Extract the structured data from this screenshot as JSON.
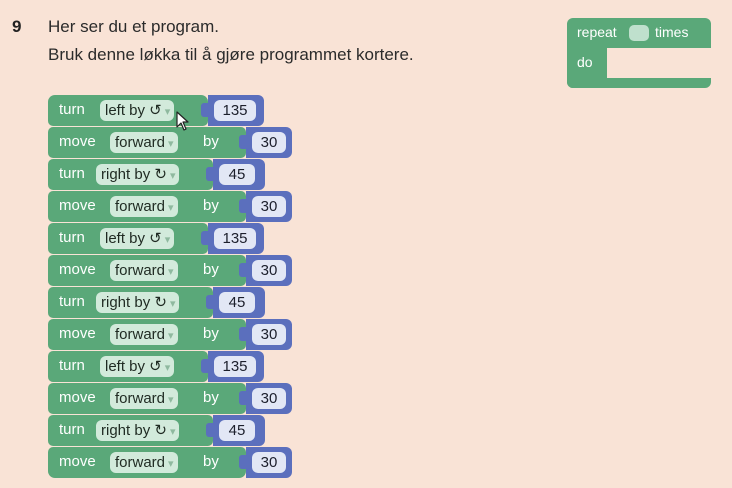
{
  "question": {
    "number": "9",
    "line1": "Her ser du et program.",
    "line2": "Bruk denne løkka til å gjøre programmet kortere."
  },
  "repeat_block": {
    "word": "repeat",
    "times": "times",
    "do": "do"
  },
  "program": [
    {
      "keyword": "turn",
      "dropdown": "left by ↺",
      "by": "",
      "value": "135"
    },
    {
      "keyword": "move",
      "dropdown": "forward",
      "by": "by",
      "value": "30"
    },
    {
      "keyword": "turn",
      "dropdown": "right by ↻",
      "by": "",
      "value": "45"
    },
    {
      "keyword": "move",
      "dropdown": "forward",
      "by": "by",
      "value": "30"
    },
    {
      "keyword": "turn",
      "dropdown": "left by ↺",
      "by": "",
      "value": "135"
    },
    {
      "keyword": "move",
      "dropdown": "forward",
      "by": "by",
      "value": "30"
    },
    {
      "keyword": "turn",
      "dropdown": "right by ↻",
      "by": "",
      "value": "45"
    },
    {
      "keyword": "move",
      "dropdown": "forward",
      "by": "by",
      "value": "30"
    },
    {
      "keyword": "turn",
      "dropdown": "left by ↺",
      "by": "",
      "value": "135"
    },
    {
      "keyword": "move",
      "dropdown": "forward",
      "by": "by",
      "value": "30"
    },
    {
      "keyword": "turn",
      "dropdown": "right by ↻",
      "by": "",
      "value": "45"
    },
    {
      "keyword": "move",
      "dropdown": "forward",
      "by": "by",
      "value": "30"
    }
  ],
  "colors": {
    "background": "#f9e3d6",
    "motion_block": "#5aa879",
    "number_socket": "#5b6fbd"
  },
  "icons": [
    "dropdown-arrow-icon",
    "mouse-pointer-icon"
  ]
}
